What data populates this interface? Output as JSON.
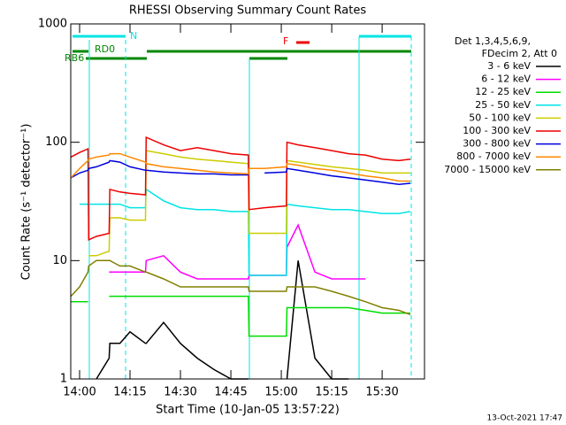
{
  "chart_data": {
    "type": "line",
    "title": "RHESSI Observing Summary Count Rates",
    "xlabel": "Start Time (10-Jan-05 13:57:22)",
    "ylabel": "Count Rate (s⁻¹ detector⁻¹)",
    "legend_header": [
      "Det 1,3,4,5,6,9,",
      "FDecim 2, Att 0"
    ],
    "flags": [
      "N",
      "RD0",
      "RB6",
      "F"
    ],
    "footer": "13-Oct-2021 17:47",
    "yscale": "log",
    "legend": "right",
    "ylim": [
      1,
      1000
    ],
    "yticks": [
      1,
      10,
      100,
      1000
    ],
    "xlim": [
      -2.63,
      102.6
    ],
    "xticks": [
      {
        "value": 0,
        "label": "14:00"
      },
      {
        "value": 15,
        "label": "14:15"
      },
      {
        "value": 30,
        "label": "14:30"
      },
      {
        "value": 45,
        "label": "14:45"
      },
      {
        "value": 60,
        "label": "15:00"
      },
      {
        "value": 75,
        "label": "15:15"
      },
      {
        "value": 90,
        "label": "15:30"
      }
    ],
    "x": [
      -2.6,
      0,
      2.5,
      2.7,
      5,
      8.8,
      9.0,
      12,
      15,
      19.6,
      19.8,
      25,
      30,
      35,
      40,
      45,
      50.2,
      50.4,
      55,
      61.5,
      61.7,
      65,
      70,
      75,
      80,
      85,
      90,
      95,
      98.4
    ],
    "series": [
      {
        "name": "3 - 6 keV",
        "color": "#000000",
        "values": [
          null,
          null,
          null,
          null,
          1,
          1.5,
          2,
          2,
          2.5,
          2,
          2,
          3,
          2,
          1.5,
          1.2,
          1,
          1,
          null,
          null,
          null,
          1,
          10,
          1.5,
          1,
          1,
          null,
          null,
          null,
          null
        ]
      },
      {
        "name": "6 - 12 keV",
        "color": "#ff00ff",
        "values": [
          null,
          null,
          null,
          null,
          null,
          8,
          8,
          8,
          8,
          8,
          10,
          11,
          8,
          7,
          7,
          7,
          7,
          7.5,
          7.5,
          7.5,
          13,
          20,
          8,
          7,
          7,
          7,
          null,
          null,
          null
        ]
      },
      {
        "name": "12 - 25 keV",
        "color": "#00dd00",
        "values": [
          4.5,
          4.5,
          4.5,
          null,
          null,
          5,
          5,
          5,
          5,
          5,
          5,
          5,
          5,
          5,
          5,
          5,
          5,
          2.3,
          2.3,
          2.3,
          4,
          4,
          4,
          4,
          4,
          3.8,
          3.6,
          3.6,
          3.6
        ]
      },
      {
        "name": "25 - 50 keV",
        "color": "#00e5e5",
        "values": [
          null,
          30,
          30,
          30,
          30,
          30,
          30,
          30,
          28,
          28,
          40,
          32,
          28,
          27,
          27,
          26,
          26,
          7.5,
          7.5,
          7.5,
          30,
          29,
          28,
          27,
          27,
          26,
          25,
          25,
          26
        ]
      },
      {
        "name": "50 - 100 keV",
        "color": "#cccc00",
        "values": [
          null,
          null,
          null,
          11,
          11,
          12,
          23,
          23,
          22,
          22,
          85,
          80,
          75,
          72,
          70,
          68,
          66,
          17,
          17,
          17,
          70,
          68,
          65,
          62,
          60,
          58,
          55,
          55,
          55
        ]
      },
      {
        "name": "100 - 300 keV",
        "color": "#ee0000",
        "values": [
          75,
          82,
          88,
          15,
          16,
          17,
          40,
          38,
          37,
          36,
          110,
          95,
          85,
          90,
          85,
          80,
          78,
          27,
          28,
          29,
          100,
          95,
          90,
          85,
          80,
          78,
          72,
          70,
          72
        ]
      },
      {
        "name": "300 - 800 keV",
        "color": "#0000dd",
        "values": [
          50,
          55,
          58,
          60,
          62,
          68,
          70,
          68,
          62,
          58,
          58,
          56,
          55,
          54,
          54,
          53,
          53,
          null,
          55,
          56,
          60,
          58,
          55,
          52,
          50,
          48,
          46,
          44,
          45
        ]
      },
      {
        "name": "800 - 7000 keV",
        "color": "#ff8800",
        "values": [
          50,
          60,
          70,
          72,
          75,
          78,
          80,
          80,
          75,
          68,
          66,
          62,
          60,
          58,
          56,
          55,
          54,
          60,
          60,
          62,
          66,
          64,
          60,
          58,
          55,
          52,
          50,
          47,
          47
        ]
      },
      {
        "name": "7000 - 15000 keV",
        "color": "#808000",
        "values": [
          5,
          6,
          8,
          9,
          10,
          10,
          10,
          9,
          9,
          8,
          8,
          7,
          6,
          6,
          6,
          6,
          6,
          5.5,
          5.5,
          5.5,
          6,
          6,
          6,
          5.5,
          5,
          4.5,
          4,
          3.8,
          3.5
        ]
      }
    ]
  }
}
